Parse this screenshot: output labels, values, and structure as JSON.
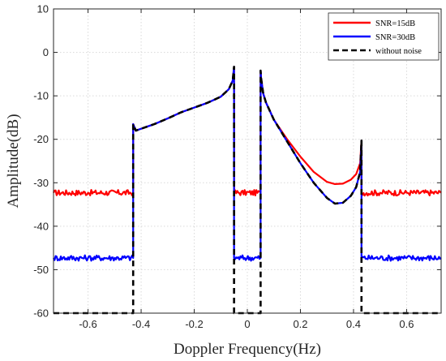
{
  "chart_data": {
    "type": "line",
    "xlabel": "Doppler Frequency(Hz)",
    "ylabel": "Amplitude(dB)",
    "xlim": [
      -0.73,
      0.73
    ],
    "ylim": [
      -60,
      10
    ],
    "xticks": [
      -0.6,
      -0.4,
      -0.2,
      0,
      0.2,
      0.4,
      0.6
    ],
    "xtick_labels": [
      "-0.6",
      "-0.4",
      "-0.2",
      "0",
      "0.2",
      "0.4",
      "0.6"
    ],
    "yticks": [
      10,
      0,
      -10,
      -20,
      -30,
      -40,
      -50,
      -60
    ],
    "ytick_labels": [
      "10",
      "0",
      "-10",
      "-20",
      "-30",
      "-40",
      "-50",
      "-60"
    ],
    "grid": true,
    "legend_position": "top-right",
    "series": [
      {
        "name": "SNR=15dB",
        "color": "#ff0000",
        "style": "solid",
        "x": [
          -0.73,
          -0.6,
          -0.43,
          -0.43,
          -0.42,
          -0.35,
          -0.3,
          -0.25,
          -0.2,
          -0.15,
          -0.1,
          -0.07,
          -0.055,
          -0.05,
          -0.05,
          0.05,
          0.05,
          0.052,
          0.06,
          0.07,
          0.1,
          0.15,
          0.2,
          0.25,
          0.3,
          0.33,
          0.36,
          0.39,
          0.41,
          0.425,
          0.43,
          0.43,
          0.5,
          0.6,
          0.73
        ],
        "y": [
          -32.3,
          -32.3,
          -32.3,
          -16.5,
          -18.0,
          -16.5,
          -15.2,
          -13.8,
          -12.7,
          -11.6,
          -10.2,
          -8.5,
          -6.5,
          -3.3,
          -32.3,
          -32.3,
          -4.2,
          -6.0,
          -9.5,
          -11.5,
          -15.5,
          -20.0,
          -24.0,
          -27.5,
          -29.8,
          -30.3,
          -30.2,
          -29.3,
          -28.0,
          -25.5,
          -20.3,
          -32.3,
          -32.3,
          -32.3,
          -32.3
        ]
      },
      {
        "name": "SNR=30dB",
        "color": "#0000ff",
        "style": "solid",
        "x": [
          -0.73,
          -0.6,
          -0.43,
          -0.43,
          -0.42,
          -0.35,
          -0.3,
          -0.25,
          -0.2,
          -0.15,
          -0.1,
          -0.07,
          -0.055,
          -0.05,
          -0.05,
          0.05,
          0.05,
          0.052,
          0.06,
          0.07,
          0.1,
          0.15,
          0.2,
          0.25,
          0.3,
          0.33,
          0.36,
          0.39,
          0.41,
          0.425,
          0.43,
          0.43,
          0.5,
          0.6,
          0.73
        ],
        "y": [
          -47.3,
          -47.3,
          -47.3,
          -16.5,
          -18.0,
          -16.5,
          -15.2,
          -13.8,
          -12.7,
          -11.6,
          -10.2,
          -8.5,
          -6.5,
          -3.3,
          -47.3,
          -47.3,
          -4.2,
          -6.0,
          -9.5,
          -11.5,
          -15.5,
          -20.5,
          -25.5,
          -30.0,
          -33.5,
          -34.8,
          -34.6,
          -33.0,
          -31.0,
          -27.5,
          -20.3,
          -47.3,
          -47.3,
          -47.3,
          -47.3
        ]
      },
      {
        "name": "without noise",
        "color": "#000000",
        "style": "dashed",
        "x": [
          -0.73,
          -0.43,
          -0.43,
          -0.42,
          -0.35,
          -0.3,
          -0.25,
          -0.2,
          -0.15,
          -0.1,
          -0.07,
          -0.055,
          -0.05,
          -0.05,
          0.05,
          0.05,
          0.052,
          0.06,
          0.07,
          0.1,
          0.15,
          0.2,
          0.25,
          0.3,
          0.33,
          0.36,
          0.39,
          0.41,
          0.425,
          0.43,
          0.43,
          0.73
        ],
        "y": [
          -60,
          -60,
          -16.5,
          -18.0,
          -16.5,
          -15.2,
          -13.8,
          -12.7,
          -11.6,
          -10.2,
          -8.5,
          -6.5,
          -3.3,
          -60,
          -60,
          -4.2,
          -6.0,
          -9.5,
          -11.5,
          -15.5,
          -20.5,
          -25.5,
          -30.0,
          -33.5,
          -34.8,
          -34.6,
          -33.0,
          -31.0,
          -27.5,
          -20.3,
          -60,
          -60
        ]
      }
    ]
  }
}
